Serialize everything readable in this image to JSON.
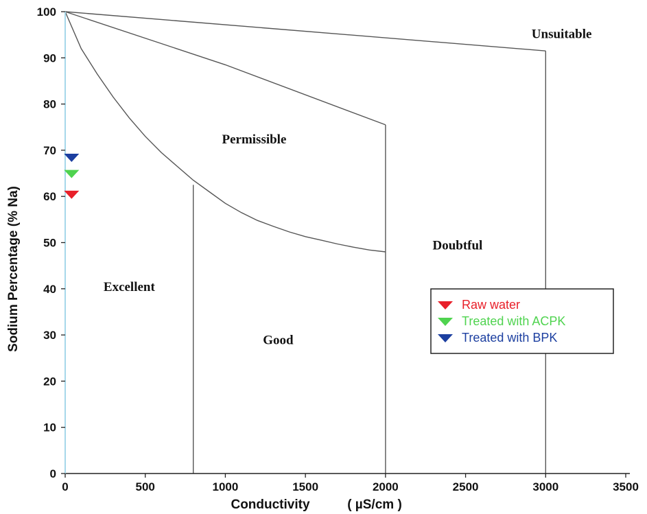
{
  "chart_data": {
    "type": "scatter",
    "title": "",
    "xlabel": "Conductivity",
    "xlabel_unit": "( µS/cm )",
    "ylabel": "Sodium Percentage (% Na)",
    "xlim": [
      0,
      3500
    ],
    "ylim": [
      0,
      100
    ],
    "x_ticks": [
      "0",
      "500",
      "1000",
      "1500",
      "2000",
      "2500",
      "3000",
      "3500"
    ],
    "y_ticks": [
      "0",
      "10",
      "20",
      "30",
      "40",
      "50",
      "60",
      "70",
      "80",
      "90",
      "100"
    ],
    "grid": false,
    "legend_position": "right",
    "series": [
      {
        "name": "Raw water",
        "color": "#e8202a",
        "marker": "triangle-down",
        "x": [
          40
        ],
        "y": [
          60.5
        ]
      },
      {
        "name": "Treated with ACPK",
        "color": "#4fd34f",
        "marker": "triangle-down",
        "x": [
          40
        ],
        "y": [
          65
        ]
      },
      {
        "name": "Treated with BPK",
        "color": "#1c3fa0",
        "marker": "triangle-down",
        "x": [
          40
        ],
        "y": [
          68.5
        ]
      }
    ],
    "boundaries": [
      {
        "x": [
          0,
          100,
          200,
          300,
          400,
          500,
          600,
          700,
          800,
          900,
          1000,
          1100,
          1200,
          1300,
          1400,
          1500,
          1600,
          1700,
          1800,
          1900,
          2000
        ],
        "y": [
          100,
          92,
          86.5,
          81.5,
          77,
          73,
          69.5,
          66.5,
          63.5,
          61,
          58.5,
          56.5,
          54.8,
          53.5,
          52.3,
          51.3,
          50.5,
          49.7,
          49,
          48.4,
          48
        ]
      },
      {
        "x": [
          0,
          1000,
          2000
        ],
        "y": [
          100,
          88.5,
          75.5
        ]
      },
      {
        "x": [
          0,
          3000
        ],
        "y": [
          100,
          91.5
        ]
      },
      {
        "x": [
          800,
          800
        ],
        "y": [
          0,
          62.5
        ]
      },
      {
        "x": [
          2000,
          2000
        ],
        "y": [
          0,
          75.5
        ]
      },
      {
        "x": [
          3000,
          3000
        ],
        "y": [
          0,
          91.5
        ]
      }
    ],
    "regions": [
      {
        "label": "Excellent",
        "x": 400,
        "y": 39.5
      },
      {
        "label": "Good",
        "x": 1330,
        "y": 28
      },
      {
        "label": "Permissible",
        "x": 1180,
        "y": 71.5
      },
      {
        "label": "Doubtful",
        "x": 2450,
        "y": 48.5
      },
      {
        "label": "Unsuitable",
        "x": 3100,
        "y": 94.3
      }
    ]
  }
}
